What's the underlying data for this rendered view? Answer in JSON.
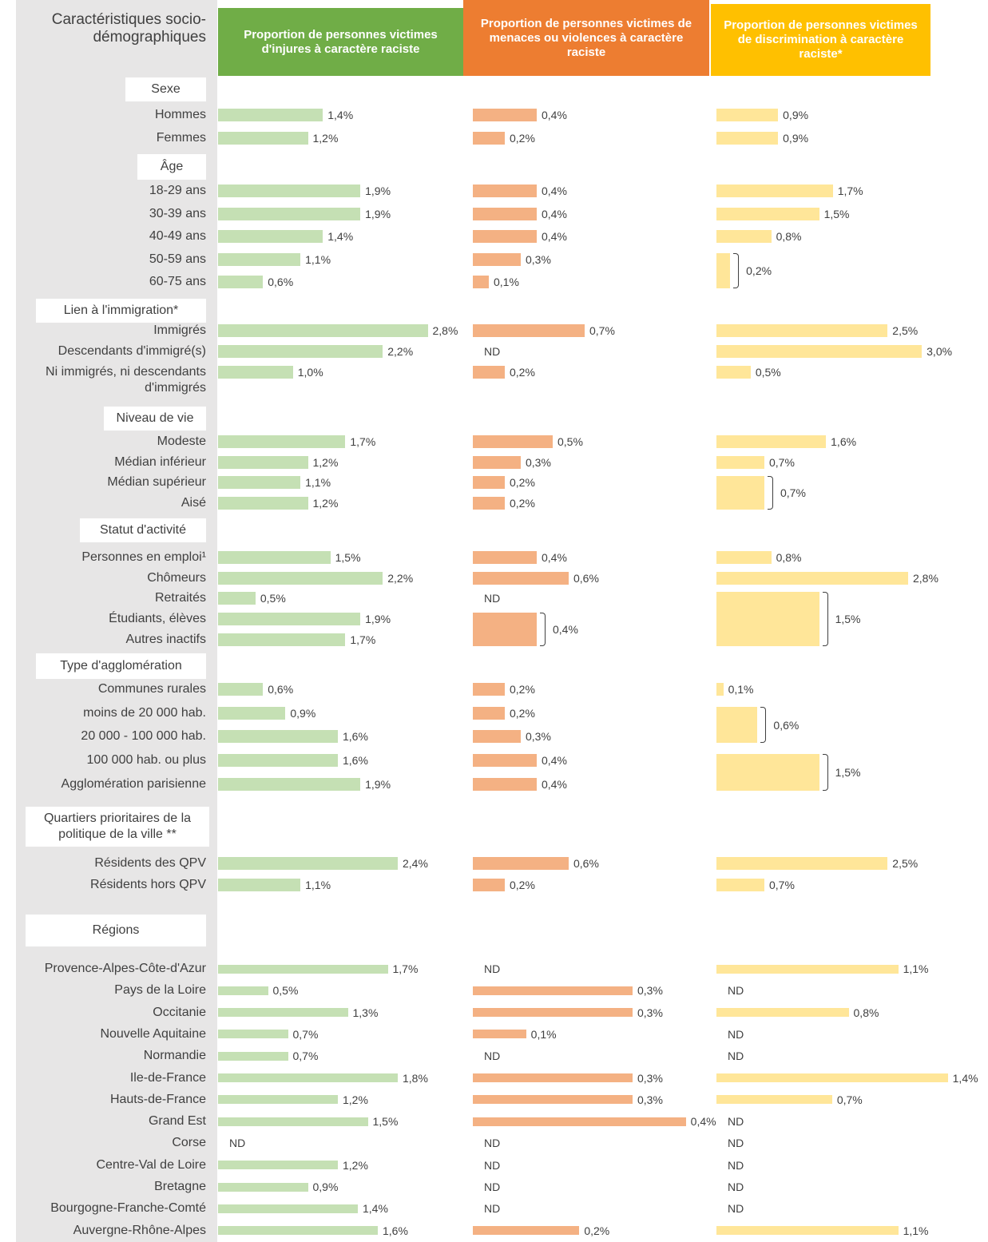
{
  "chart_data": {
    "type": "bar",
    "header": "Caractéristiques socio-démographiques",
    "series": [
      {
        "name": "Proportion de personnes victimes d'injures à caractère raciste",
        "color": "#70ad47",
        "bar_color": "#c5e0b4",
        "xlim": [
          0,
          3.2
        ]
      },
      {
        "name": "Proportion de personnes victimes de menaces ou violences à caractère raciste",
        "color": "#ed7d31",
        "bar_color": "#f4b183",
        "xlim": [
          0,
          1.5
        ]
      },
      {
        "name": "Proportion de personnes victimes de discrimination à caractère raciste*",
        "color": "#ffc000",
        "bar_color": "#ffe699",
        "xlim": [
          0,
          3.5
        ]
      }
    ],
    "sections": [
      {
        "title": "Sexe",
        "categories": [
          "Hommes",
          "Femmes"
        ],
        "series": [
          {
            "values": [
              1.4,
              1.2
            ],
            "value_labels": [
              "1,4%",
              "1,2%"
            ]
          },
          {
            "values": [
              0.4,
              0.2
            ],
            "value_labels": [
              "0,4%",
              "0,2%"
            ]
          },
          {
            "values": [
              0.9,
              0.9
            ],
            "value_labels": [
              "0,9%",
              "0,9%"
            ]
          }
        ]
      },
      {
        "title": "Âge",
        "categories": [
          "18-29 ans",
          "30-39 ans",
          "40-49 ans",
          "50-59 ans",
          "60-75 ans"
        ],
        "series": [
          {
            "values": [
              1.9,
              1.9,
              1.4,
              1.1,
              0.6
            ],
            "value_labels": [
              "1,9%",
              "1,9%",
              "1,4%",
              "1,1%",
              "0,6%"
            ]
          },
          {
            "values": [
              0.4,
              0.4,
              0.4,
              0.3,
              0.1
            ],
            "value_labels": [
              "0,4%",
              "0,4%",
              "0,4%",
              "0,3%",
              "0,1%"
            ]
          },
          {
            "values": [
              1.7,
              1.5,
              0.8,
              null,
              null
            ],
            "value_labels": [
              "1,7%",
              "1,5%",
              "0,8%",
              null,
              null
            ],
            "groups": [
              {
                "start": 3,
                "end": 4,
                "value": 0.2,
                "value_label": "0,2%"
              }
            ]
          }
        ]
      },
      {
        "title": "Lien à l'immigration*",
        "categories": [
          "Immigrés",
          "Descendants d'immigré(s)",
          "Ni immigrés, ni descendants d'immigrés"
        ],
        "series": [
          {
            "values": [
              2.8,
              2.2,
              1.0
            ],
            "value_labels": [
              "2,8%",
              "2,2%",
              "1,0%"
            ]
          },
          {
            "values": [
              0.7,
              null,
              0.2
            ],
            "value_labels": [
              "0,7%",
              "ND",
              "0,2%"
            ]
          },
          {
            "values": [
              2.5,
              3.0,
              0.5
            ],
            "value_labels": [
              "2,5%",
              "3,0%",
              "0,5%"
            ]
          }
        ]
      },
      {
        "title": "Niveau de vie",
        "categories": [
          "Modeste",
          "Médian inférieur",
          "Médian supérieur",
          "Aisé"
        ],
        "series": [
          {
            "values": [
              1.7,
              1.2,
              1.1,
              1.2
            ],
            "value_labels": [
              "1,7%",
              "1,2%",
              "1,1%",
              "1,2%"
            ]
          },
          {
            "values": [
              0.5,
              0.3,
              0.2,
              0.2
            ],
            "value_labels": [
              "0,5%",
              "0,3%",
              "0,2%",
              "0,2%"
            ]
          },
          {
            "values": [
              1.6,
              0.7,
              null,
              null
            ],
            "value_labels": [
              "1,6%",
              "0,7%",
              null,
              null
            ],
            "groups": [
              {
                "start": 2,
                "end": 3,
                "value": 0.7,
                "value_label": "0,7%"
              }
            ]
          }
        ]
      },
      {
        "title": "Statut d'activité",
        "categories": [
          "Personnes en emploi¹",
          "Chômeurs",
          "Retraités",
          "Étudiants, élèves",
          "Autres inactifs"
        ],
        "series": [
          {
            "values": [
              1.5,
              2.2,
              0.5,
              1.9,
              1.7
            ],
            "value_labels": [
              "1,5%",
              "2,2%",
              "0,5%",
              "1,9%",
              "1,7%"
            ]
          },
          {
            "values": [
              0.4,
              0.6,
              null,
              null,
              null
            ],
            "value_labels": [
              "0,4%",
              "0,6%",
              "ND",
              null,
              null
            ],
            "groups": [
              {
                "start": 3,
                "end": 4,
                "value": 0.4,
                "value_label": "0,4%"
              }
            ]
          },
          {
            "values": [
              0.8,
              2.8,
              null,
              null,
              null
            ],
            "value_labels": [
              "0,8%",
              "2,8%",
              null,
              null,
              null
            ],
            "groups": [
              {
                "start": 2,
                "end": 4,
                "value": 1.5,
                "value_label": "1,5%"
              }
            ]
          }
        ]
      },
      {
        "title": "Type d'agglomération",
        "categories": [
          "Communes rurales",
          "moins de 20 000 hab.",
          "20 000 - 100 000 hab.",
          "100 000 hab. ou plus",
          "Agglomération parisienne"
        ],
        "series": [
          {
            "values": [
              0.6,
              0.9,
              1.6,
              1.6,
              1.9
            ],
            "value_labels": [
              "0,6%",
              "0,9%",
              "1,6%",
              "1,6%",
              "1,9%"
            ]
          },
          {
            "values": [
              0.2,
              0.2,
              0.3,
              0.4,
              0.4
            ],
            "value_labels": [
              "0,2%",
              "0,2%",
              "0,3%",
              "0,4%",
              "0,4%"
            ]
          },
          {
            "values": [
              0.1,
              null,
              null,
              null,
              null
            ],
            "value_labels": [
              "0,1%",
              null,
              null,
              null,
              null
            ],
            "groups": [
              {
                "start": 1,
                "end": 2,
                "value": 0.6,
                "value_label": "0,6%"
              },
              {
                "start": 3,
                "end": 4,
                "value": 1.5,
                "value_label": "1,5%"
              }
            ]
          }
        ]
      },
      {
        "title": "Quartiers prioritaires de la politique de la ville **",
        "categories": [
          "Résidents des QPV",
          "Résidents hors QPV"
        ],
        "series": [
          {
            "values": [
              2.4,
              1.1
            ],
            "value_labels": [
              "2,4%",
              "1,1%"
            ]
          },
          {
            "values": [
              0.6,
              0.2
            ],
            "value_labels": [
              "0,6%",
              "0,2%"
            ]
          },
          {
            "values": [
              2.5,
              0.7
            ],
            "value_labels": [
              "2,5%",
              "0,7%"
            ]
          }
        ]
      },
      {
        "title": "Régions",
        "xlims": [
          [
            0,
            2.4
          ],
          [
            0,
            0.45
          ],
          [
            0,
            1.45
          ]
        ],
        "categories": [
          "Provence-Alpes-Côte-d'Azur",
          "Pays de la Loire",
          "Occitanie",
          "Nouvelle Aquitaine",
          "Normandie",
          "Ile-de-France",
          "Hauts-de-France",
          "Grand Est",
          "Corse",
          "Centre-Val de Loire",
          "Bretagne",
          "Bourgogne-Franche-Comté",
          "Auvergne-Rhône-Alpes"
        ],
        "series": [
          {
            "values": [
              1.7,
              0.5,
              1.3,
              0.7,
              0.7,
              1.8,
              1.2,
              1.5,
              null,
              1.2,
              0.9,
              1.4,
              1.6
            ],
            "value_labels": [
              "1,7%",
              "0,5%",
              "1,3%",
              "0,7%",
              "0,7%",
              "1,8%",
              "1,2%",
              "1,5%",
              "ND",
              "1,2%",
              "0,9%",
              "1,4%",
              "1,6%"
            ]
          },
          {
            "values": [
              null,
              0.3,
              0.3,
              0.1,
              null,
              0.3,
              0.3,
              0.4,
              null,
              null,
              null,
              null,
              0.2
            ],
            "value_labels": [
              "ND",
              "0,3%",
              "0,3%",
              "0,1%",
              "ND",
              "0,3%",
              "0,3%",
              "0,4%",
              "ND",
              "ND",
              "ND",
              "ND",
              "0,2%"
            ]
          },
          {
            "values": [
              1.1,
              null,
              0.8,
              null,
              null,
              1.4,
              0.7,
              null,
              null,
              null,
              null,
              null,
              1.1
            ],
            "value_labels": [
              "1,1%",
              "ND",
              "0,8%",
              "ND",
              "ND",
              "1,4%",
              "0,7%",
              "ND",
              "ND",
              "ND",
              "ND",
              "ND",
              "1,1%"
            ]
          }
        ]
      }
    ]
  }
}
